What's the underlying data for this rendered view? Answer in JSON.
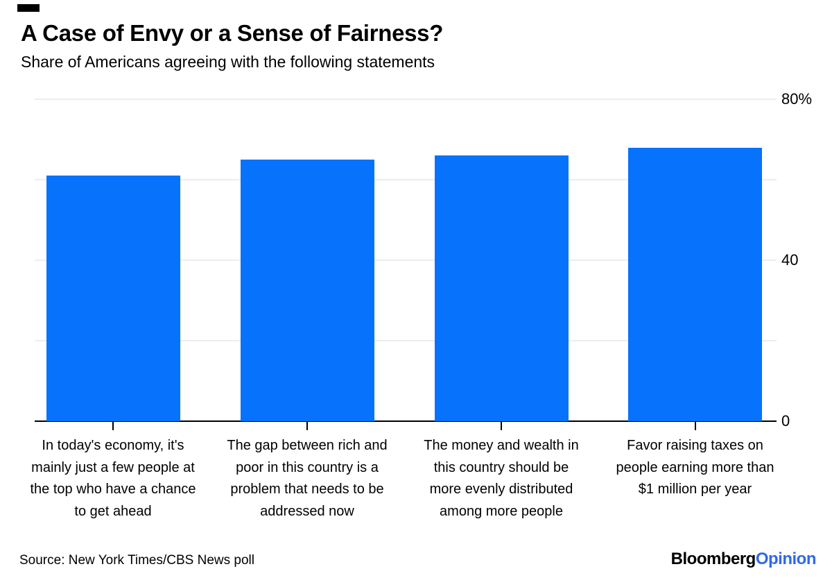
{
  "header": {
    "title": "A Case of Envy or a Sense of Fairness?",
    "subtitle": "Share of Americans agreeing with the following statements"
  },
  "chart_data": {
    "type": "bar",
    "title": "A Case of Envy or a Sense of Fairness?",
    "subtitle": "Share of Americans agreeing with the following statements",
    "unit": "percent",
    "categories": [
      "In today's economy, it's mainly just a few people at the top who have a chance to get ahead",
      "The gap between rich and poor in this country is a problem that needs to be addressed now",
      "The money and wealth in this country should be more evenly distributed among more people",
      "Favor raising taxes on people earning more than $1 million per year"
    ],
    "category_lines": [
      [
        "In today's economy, it's",
        "mainly just a few people at",
        "the top who have a chance",
        "to get ahead"
      ],
      [
        "The gap between rich and",
        "poor in this country is a",
        "problem that needs to be",
        "addressed now"
      ],
      [
        "The money and wealth in",
        "this country should be",
        "more evenly distributed",
        "among more people"
      ],
      [
        "Favor raising taxes on",
        "people earning more than",
        "$1 million per year"
      ]
    ],
    "values": [
      61,
      65,
      66,
      68
    ],
    "ylim": [
      0,
      80
    ],
    "yticks": [
      {
        "value": 0,
        "label": "0"
      },
      {
        "value": 20,
        "label": ""
      },
      {
        "value": 40,
        "label": "40"
      },
      {
        "value": 60,
        "label": ""
      },
      {
        "value": 80,
        "label": "80%"
      }
    ],
    "tick_label_side": "right",
    "legend": "none",
    "grid": "horizontal",
    "bar_color": "#0772fb",
    "gridline_color": "#ededed",
    "axis_color": "#000000"
  },
  "footer": {
    "source": "Source: New York Times/CBS News poll",
    "logo": {
      "bloomberg": "Bloomberg",
      "opinion": "Opinion",
      "opinion_color": "#3069e6"
    }
  }
}
